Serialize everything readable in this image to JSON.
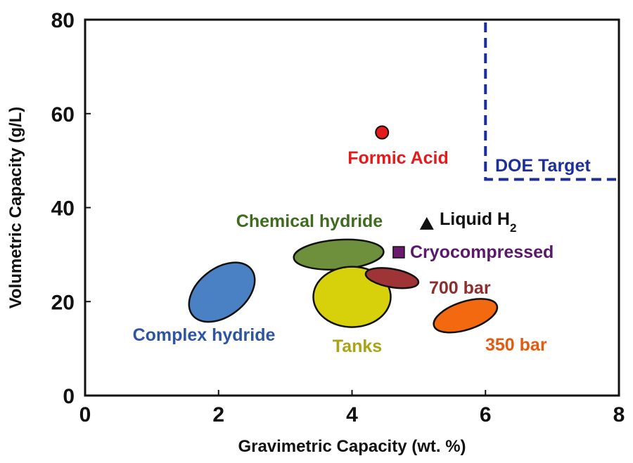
{
  "chart_data": {
    "type": "scatter",
    "title": "",
    "xlabel": "Gravimetric Capacity (wt. %)",
    "ylabel": "Volumetric Capacity (g/L)",
    "xlim": [
      0,
      8
    ],
    "ylim": [
      0,
      80
    ],
    "xticks": [
      "0",
      "2",
      "4",
      "6",
      "8"
    ],
    "yticks": [
      "0",
      "20",
      "40",
      "60",
      "80"
    ],
    "grid": false,
    "legend": "none",
    "target_region": {
      "label": "DOE Target",
      "x_min": 6,
      "y_min": 46,
      "color": "#1c2f9c"
    },
    "points": [
      {
        "label": "Formic Acid",
        "x": 4.45,
        "y": 56,
        "marker": "circle",
        "color": "#e41a1c",
        "label_color": "#e41a1c"
      },
      {
        "label": "Liquid H",
        "sub": "2",
        "x": 5.12,
        "y": 36.5,
        "marker": "triangle",
        "color": "#111111",
        "label_color": "#111111"
      },
      {
        "label": "Cryocompressed",
        "x": 4.7,
        "y": 30.5,
        "marker": "square",
        "color": "#6a1b6e",
        "label_color": "#5a1a6a"
      }
    ],
    "regions": [
      {
        "label": "Chemical hydride",
        "x": 3.8,
        "y": 30,
        "x_range": [
          3.1,
          4.4
        ],
        "y_range": [
          27,
          33
        ],
        "color": "#6e8f3b",
        "label_color": "#3e6b1f"
      },
      {
        "label": "Complex hydride",
        "x": 2.05,
        "y": 22,
        "x_range": [
          1.5,
          2.6
        ],
        "y_range": [
          16,
          28
        ],
        "color": "#4a80c4",
        "label_color": "#2e55a0"
      },
      {
        "label": "Tanks",
        "x": 4.0,
        "y": 21,
        "x_range": [
          3.5,
          4.5
        ],
        "y_range": [
          15,
          27
        ],
        "color": "#d6d10a",
        "label_color": "#a8a416"
      },
      {
        "label": "700 bar",
        "x": 4.6,
        "y": 25,
        "x_range": [
          4.2,
          5.0
        ],
        "y_range": [
          23,
          27
        ],
        "color": "#9e3436",
        "label_color": "#8e2d2d"
      },
      {
        "label": "350 bar",
        "x": 5.7,
        "y": 17,
        "x_range": [
          5.3,
          6.2
        ],
        "y_range": [
          14,
          20
        ],
        "color": "#f2690f",
        "label_color": "#e55a0c"
      }
    ]
  }
}
